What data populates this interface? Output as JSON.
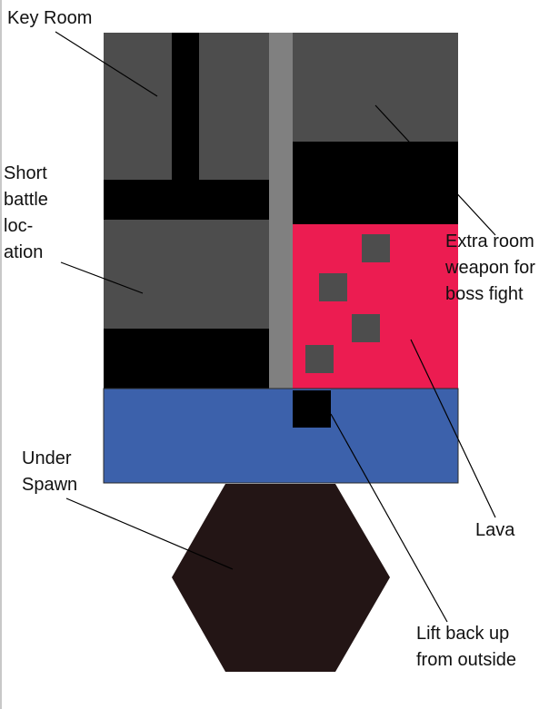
{
  "labels": {
    "key_room": "Key Room",
    "short_battle": "Short\nbattle\nloc-\nation",
    "extra_room": "Extra room\nweapon for\nboss fight",
    "under_spawn": "Under\nSpawn",
    "lava": "Lava",
    "lift": "Lift back up\nfrom outside"
  },
  "colors": {
    "dark_gray": "#4d4d4d",
    "black": "#000000",
    "light_gray": "#808080",
    "lava": "#ec1c51",
    "water_blue": "#3c61ab",
    "hexagon": "#231515",
    "leader": "#000000"
  }
}
